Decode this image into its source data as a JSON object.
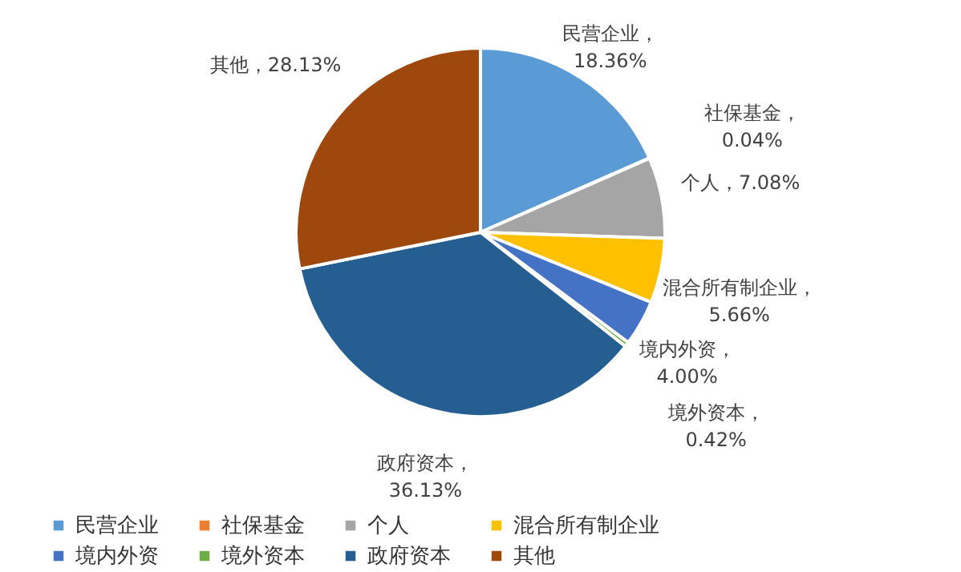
{
  "chart_data": {
    "type": "pie",
    "categories": [
      "民营企业",
      "社保基金",
      "个人",
      "混合所有制企业",
      "境内外资",
      "境外资本",
      "政府资本",
      "其他"
    ],
    "values": [
      18.36,
      0.04,
      7.08,
      5.66,
      4.0,
      0.42,
      36.13,
      28.13
    ],
    "colors": [
      "#5b9bd5",
      "#ed7d31",
      "#a5a5a5",
      "#ffc000",
      "#4472c4",
      "#70ad47",
      "#255e91",
      "#9e480e"
    ],
    "value_labels": [
      "民营企业，18.36%",
      "社保基金，0.04%",
      "个人，7.08%",
      "混合所有制企业，5.66%",
      "境内外资，4.00%",
      "境外资本，0.42%",
      "政府资本，36.13%",
      "其他，28.13%"
    ],
    "legend": "bottom"
  }
}
